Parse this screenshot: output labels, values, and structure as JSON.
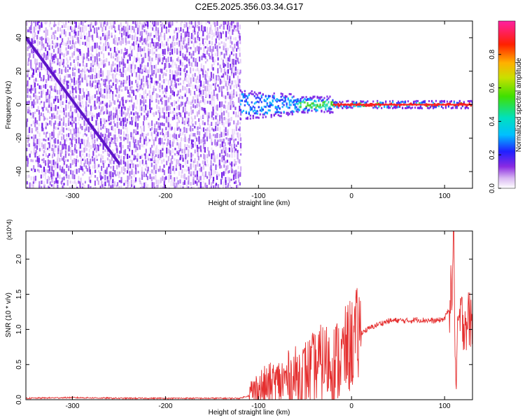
{
  "title": "C2E5.2025.356.03.34.G17",
  "colors": {
    "snr_line": "#e53030"
  },
  "chart_data": [
    {
      "type": "heatmap",
      "title": "C2E5.2025.356.03.34.G17",
      "xlabel": "Height of straight line (km)",
      "ylabel": "Frequency (Hz)",
      "xlim": [
        -350,
        130
      ],
      "ylim": [
        -50,
        50
      ],
      "xticks": [
        -300,
        -200,
        -100,
        0,
        100
      ],
      "yticks": [
        -40,
        -20,
        0,
        20,
        40
      ],
      "colorbar": {
        "label": "Normalized spectral amplitude",
        "range": [
          0,
          1
        ],
        "ticks": [
          "0.0",
          "0.2",
          "0.4",
          "0.6",
          "0.8"
        ],
        "colormap": "rainbow (white-violet-blue-cyan-green-yellow-red-magenta)"
      },
      "features": {
        "noise_region_x": [
          -350,
          -120
        ],
        "carrier_frequency_hz": 0,
        "diagonal_trace": {
          "x": [
            -350,
            -250
          ],
          "y": [
            40,
            -35
          ]
        }
      }
    },
    {
      "type": "line",
      "xlabel": "Height of straight line (km)",
      "ylabel": "SNR (10 * v/v)",
      "y_multiplier": "(x10^4)",
      "xlim": [
        -350,
        130
      ],
      "ylim": [
        0,
        2.4
      ],
      "xticks": [
        -300,
        -200,
        -100,
        0,
        100
      ],
      "yticks": [
        "0.0",
        "0.5",
        "1.0",
        "1.5",
        "2.0"
      ],
      "series": [
        {
          "x": [
            -350,
            -300,
            -250,
            -200,
            -150,
            -120,
            -110,
            -100,
            -90,
            -80,
            -70,
            -60,
            -50,
            -40,
            -30,
            -20,
            -10,
            0,
            10,
            20,
            30,
            40,
            50,
            60,
            70,
            80,
            90,
            100,
            105,
            108,
            110,
            112,
            115,
            120,
            130
          ],
          "y": [
            0.01,
            0.02,
            0.01,
            0.01,
            0.01,
            0.01,
            0.05,
            0.15,
            0.18,
            0.22,
            0.28,
            0.32,
            0.38,
            0.45,
            0.55,
            0.5,
            0.6,
            0.8,
            0.95,
            1.02,
            1.08,
            1.12,
            1.13,
            1.12,
            1.14,
            1.13,
            1.12,
            1.15,
            1.3,
            1.6,
            2.4,
            0.05,
            1.12,
            1.14,
            1.13
          ]
        }
      ]
    }
  ]
}
